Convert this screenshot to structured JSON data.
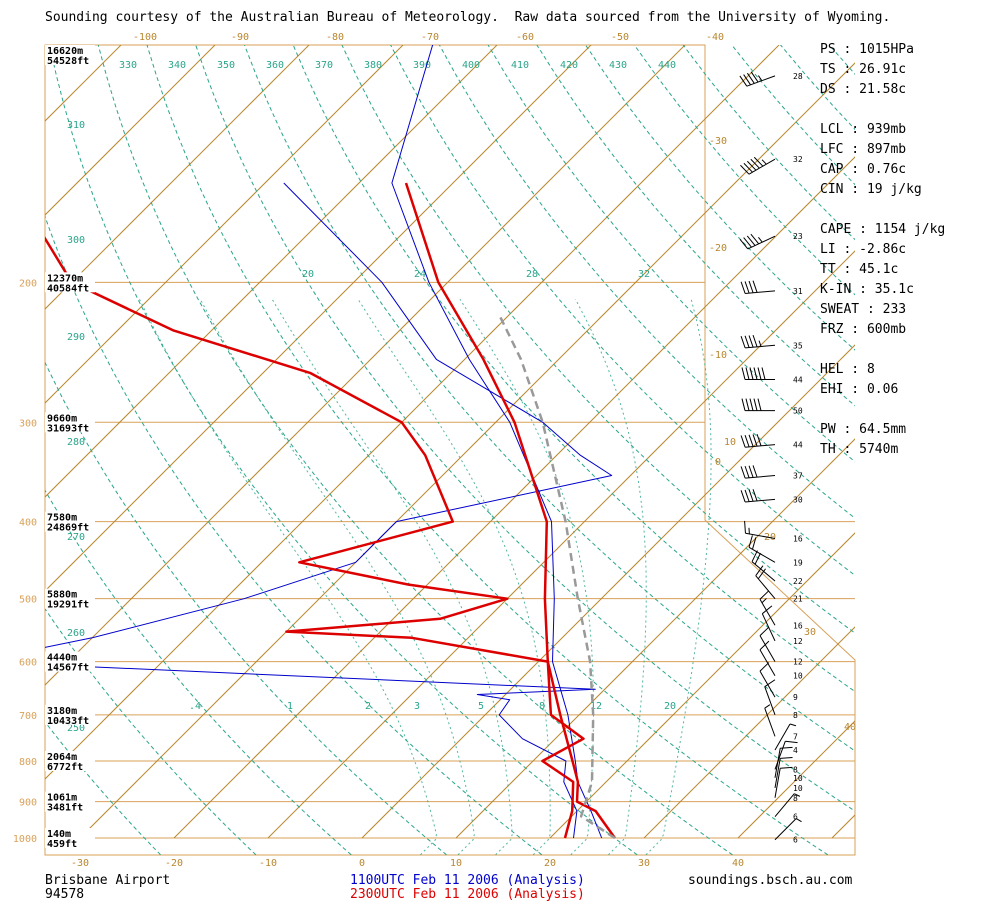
{
  "header": "Sounding courtesy of the Australian Bureau of Meteorology.  Raw data sourced from the University of Wyoming.",
  "footer": {
    "station_name": "Brisbane Airport",
    "station_id": "94578",
    "run1": "1100UTC Feb 11 2006 (Analysis)",
    "run2": "2300UTC Feb 11 2006 (Analysis)",
    "source": "soundings.bsch.au.com"
  },
  "colors": {
    "frame": "#d9a15a",
    "isotherm": "#b8862e",
    "theta": "#2aa58a",
    "run1": "#0000cc",
    "run2": "#dd0000",
    "parcel": "#999999"
  },
  "stats": [
    {
      "label": "PS",
      "value": "1015HPa"
    },
    {
      "label": "TS",
      "value": "26.91c"
    },
    {
      "label": "DS",
      "value": "21.58c"
    },
    {
      "label": "",
      "value": ""
    },
    {
      "label": "LCL",
      "value": "939mb"
    },
    {
      "label": "LFC",
      "value": "897mb"
    },
    {
      "label": "CAP",
      "value": "0.76c"
    },
    {
      "label": "CIN",
      "value": "19 j/kg"
    },
    {
      "label": "",
      "value": ""
    },
    {
      "label": "CAPE",
      "value": "1154 j/kg"
    },
    {
      "label": "LI",
      "value": "-2.86c"
    },
    {
      "label": "TT",
      "value": "45.1c"
    },
    {
      "label": "K-IN",
      "value": "35.1c"
    },
    {
      "label": "SWEAT",
      "value": "233"
    },
    {
      "label": "FRZ",
      "value": "600mb"
    },
    {
      "label": "",
      "value": ""
    },
    {
      "label": "HEL",
      "value": "8"
    },
    {
      "label": "EHI",
      "value": "0.06"
    },
    {
      "label": "",
      "value": ""
    },
    {
      "label": "PW",
      "value": "64.5mm"
    },
    {
      "label": "TH",
      "value": "5740m"
    }
  ],
  "chart_data": {
    "type": "line",
    "diagram": "skew-T log-P",
    "pressure_ticks": [
      200,
      300,
      400,
      500,
      600,
      700,
      800,
      900,
      1000
    ],
    "temperature_ticks": [
      -30,
      -20,
      -10,
      0,
      10,
      20,
      30,
      40
    ],
    "top_temperature_ticks": [
      -100,
      -90,
      -80,
      -70,
      -60,
      -50,
      -40
    ],
    "right_temperature_ticks": [
      -30,
      -20,
      -10,
      0
    ],
    "skewed_isotherm_labels": [
      10,
      20,
      30,
      40
    ],
    "theta_labels": [
      250,
      260,
      270,
      280,
      290,
      300,
      310,
      330,
      340,
      350,
      360,
      370,
      380,
      390,
      400,
      410,
      420,
      430,
      440
    ],
    "theta_e_labels": [
      20,
      24,
      28,
      32
    ],
    "mixing_ratio_labels": [
      ".4",
      "1",
      "2",
      "3",
      "5",
      "8",
      "12",
      "20"
    ],
    "height_labels": [
      {
        "p": 100,
        "m": "16620m",
        "ft": "54528ft"
      },
      {
        "p": 200,
        "m": "12370m",
        "ft": "40584ft"
      },
      {
        "p": 300,
        "m": "9660m",
        "ft": "31693ft"
      },
      {
        "p": 400,
        "m": "7580m",
        "ft": "24869ft"
      },
      {
        "p": 500,
        "m": "5880m",
        "ft": "19291ft"
      },
      {
        "p": 600,
        "m": "4440m",
        "ft": "14567ft"
      },
      {
        "p": 700,
        "m": "3180m",
        "ft": "10433ft"
      },
      {
        "p": 800,
        "m": "2064m",
        "ft": "6772ft"
      },
      {
        "p": 900,
        "m": "1061m",
        "ft": "3481ft"
      },
      {
        "p": 1000,
        "m": "140m",
        "ft": "459ft"
      }
    ],
    "series": [
      {
        "name": "1100UTC Feb 11 2006 (Analysis)",
        "kind": "temperature",
        "points": [
          [
            1000,
            25.5
          ],
          [
            925,
            21.5
          ],
          [
            850,
            17.0
          ],
          [
            800,
            14.5
          ],
          [
            700,
            8.8
          ],
          [
            600,
            1.5
          ],
          [
            500,
            -5.0
          ],
          [
            400,
            -13.5
          ],
          [
            300,
            -28.5
          ],
          [
            250,
            -39.5
          ],
          [
            200,
            -52.0
          ],
          [
            150,
            -66.5
          ],
          [
            100,
            -77.0
          ]
        ]
      },
      {
        "name": "1100UTC Feb 11 2006 (Analysis)",
        "kind": "dewpoint",
        "points": [
          [
            1000,
            22.5
          ],
          [
            925,
            20.0
          ],
          [
            850,
            15.5
          ],
          [
            800,
            13.5
          ],
          [
            750,
            6.5
          ],
          [
            700,
            1.5
          ],
          [
            670,
            1.0
          ],
          [
            660,
            -3.0
          ],
          [
            650,
            9.0
          ],
          [
            600,
            -60.0
          ],
          [
            560,
            -50.0
          ],
          [
            500,
            -38.0
          ],
          [
            450,
            -30.0
          ],
          [
            400,
            -30.0
          ],
          [
            350,
            -12.0
          ],
          [
            330,
            -17.5
          ],
          [
            300,
            -25.0
          ],
          [
            250,
            -43.0
          ],
          [
            200,
            -57.0
          ],
          [
            150,
            -78.0
          ]
        ]
      },
      {
        "name": "2300UTC Feb 11 2006 (Analysis)",
        "kind": "temperature",
        "points": [
          [
            1000,
            26.9
          ],
          [
            925,
            22.0
          ],
          [
            900,
            19.0
          ],
          [
            850,
            17.0
          ],
          [
            800,
            14.2
          ],
          [
            700,
            8.0
          ],
          [
            600,
            1.0
          ],
          [
            500,
            -6.0
          ],
          [
            400,
            -14.0
          ],
          [
            300,
            -28.0
          ],
          [
            250,
            -38.0
          ],
          [
            200,
            -51.0
          ],
          [
            150,
            -65.0
          ]
        ]
      },
      {
        "name": "2300UTC Feb 11 2006 (Analysis)",
        "kind": "dewpoint",
        "points": [
          [
            1000,
            21.6
          ],
          [
            925,
            19.5
          ],
          [
            850,
            16.5
          ],
          [
            800,
            11.0
          ],
          [
            750,
            13.0
          ],
          [
            700,
            7.0
          ],
          [
            600,
            1.0
          ],
          [
            560,
            -16.0
          ],
          [
            550,
            -30.0
          ],
          [
            530,
            -15.0
          ],
          [
            500,
            -10.0
          ],
          [
            480,
            -22.0
          ],
          [
            450,
            -36.0
          ],
          [
            400,
            -24.0
          ],
          [
            330,
            -34.0
          ],
          [
            300,
            -40.0
          ],
          [
            260,
            -55.0
          ],
          [
            230,
            -74.0
          ],
          [
            200,
            -90.0
          ],
          [
            150,
            -107.0
          ]
        ]
      },
      {
        "name": "parcel",
        "kind": "parcel",
        "points": [
          [
            1000,
            26.9
          ],
          [
            939,
            21.0
          ],
          [
            850,
            18.5
          ],
          [
            700,
            11.5
          ],
          [
            600,
            5.5
          ],
          [
            500,
            -2.5
          ],
          [
            400,
            -12.0
          ],
          [
            300,
            -25.0
          ],
          [
            250,
            -34.0
          ],
          [
            220,
            -41.0
          ]
        ]
      }
    ],
    "wind_barbs": [
      {
        "p": 110,
        "label": "28",
        "dir": 250,
        "kt": 45
      },
      {
        "p": 140,
        "label": "32",
        "dir": 240,
        "kt": 55
      },
      {
        "p": 175,
        "label": "23",
        "dir": 245,
        "kt": 45
      },
      {
        "p": 205,
        "label": "31",
        "dir": 265,
        "kt": 40
      },
      {
        "p": 240,
        "label": "35",
        "dir": 265,
        "kt": 45
      },
      {
        "p": 265,
        "label": "44",
        "dir": 270,
        "kt": 60
      },
      {
        "p": 290,
        "label": "50",
        "dir": 270,
        "kt": 50
      },
      {
        "p": 320,
        "label": "44",
        "dir": 265,
        "kt": 50
      },
      {
        "p": 350,
        "label": "37",
        "dir": 265,
        "kt": 40
      },
      {
        "p": 375,
        "label": "30",
        "dir": 265,
        "kt": 40
      },
      {
        "p": 420,
        "label": "16",
        "dir": 280,
        "kt": 15
      },
      {
        "p": 450,
        "label": "19",
        "dir": 300,
        "kt": 20
      },
      {
        "p": 475,
        "label": "22",
        "dir": 310,
        "kt": 20
      },
      {
        "p": 500,
        "label": "21",
        "dir": 320,
        "kt": 20
      },
      {
        "p": 540,
        "label": "16",
        "dir": 330,
        "kt": 15
      },
      {
        "p": 565,
        "label": "12",
        "dir": 335,
        "kt": 10
      },
      {
        "p": 600,
        "label": "12",
        "dir": 330,
        "kt": 10
      },
      {
        "p": 625,
        "label": "10",
        "dir": 330,
        "kt": 10
      },
      {
        "p": 665,
        "label": "9",
        "dir": 330,
        "kt": 10
      },
      {
        "p": 700,
        "label": "8",
        "dir": 340,
        "kt": 10
      },
      {
        "p": 745,
        "label": "7",
        "dir": 340,
        "kt": 5
      },
      {
        "p": 775,
        "label": "4",
        "dir": 30,
        "kt": 5
      },
      {
        "p": 820,
        "label": "8",
        "dir": 20,
        "kt": 10
      },
      {
        "p": 840,
        "label": "10",
        "dir": 10,
        "kt": 10
      },
      {
        "p": 865,
        "label": "10",
        "dir": 10,
        "kt": 10
      },
      {
        "p": 890,
        "label": "8",
        "dir": 10,
        "kt": 10
      },
      {
        "p": 940,
        "label": "6",
        "dir": 40,
        "kt": 5
      },
      {
        "p": 1005,
        "label": "6",
        "dir": 45,
        "kt": 5
      }
    ]
  }
}
